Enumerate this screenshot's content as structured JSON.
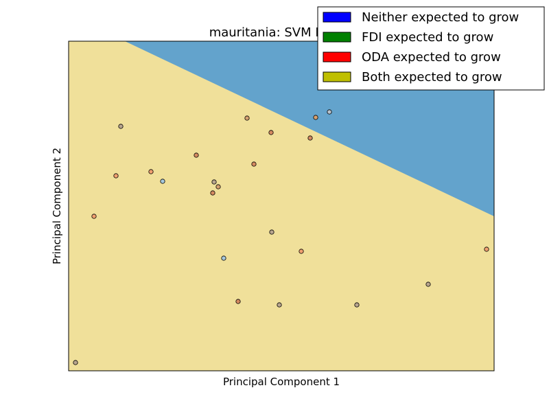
{
  "chart_data": {
    "type": "scatter",
    "title": "mauritania: SVM Linear",
    "xlabel": "Principal Component 1",
    "ylabel": "Principal Component 2",
    "xlim": [
      0,
      620
    ],
    "ylim": [
      0,
      480
    ],
    "ticks_visible": false,
    "grid": false,
    "legend_placement": "top-right",
    "legend": [
      {
        "label": "Neither expected to grow",
        "color": "#0000ff"
      },
      {
        "label": "FDI expected to grow",
        "color": "#008000"
      },
      {
        "label": "ODA expected to grow",
        "color": "#ff0000"
      },
      {
        "label": "Both expected to grow",
        "color": "#bfbf00"
      }
    ],
    "regions": [
      {
        "class": "Both expected to grow",
        "color": "#f0e09a"
      },
      {
        "class": "Neither expected to grow",
        "color": "#63a3cc"
      }
    ],
    "decision_boundary": [
      [
        82,
        480
      ],
      [
        620,
        225
      ]
    ],
    "points": [
      {
        "x": 76,
        "y": 356,
        "color": "#b8a58e"
      },
      {
        "x": 260,
        "y": 368,
        "color": "#d4a070"
      },
      {
        "x": 295,
        "y": 347,
        "color": "#d48a60"
      },
      {
        "x": 360,
        "y": 369,
        "color": "#d6a06f"
      },
      {
        "x": 380,
        "y": 377,
        "color": "#b8c2cc"
      },
      {
        "x": 352,
        "y": 339,
        "color": "#d48a60"
      },
      {
        "x": 186,
        "y": 314,
        "color": "#d48a60"
      },
      {
        "x": 270,
        "y": 301,
        "color": "#d48a60"
      },
      {
        "x": 120,
        "y": 290,
        "color": "#f0a070"
      },
      {
        "x": 69,
        "y": 284,
        "color": "#f0a070"
      },
      {
        "x": 137,
        "y": 276,
        "color": "#a6c8dc"
      },
      {
        "x": 212,
        "y": 275,
        "color": "#b8a58e"
      },
      {
        "x": 218,
        "y": 268,
        "color": "#d4a070"
      },
      {
        "x": 210,
        "y": 259,
        "color": "#d48a60"
      },
      {
        "x": 37,
        "y": 225,
        "color": "#f0a070"
      },
      {
        "x": 296,
        "y": 202,
        "color": "#b8a58e"
      },
      {
        "x": 339,
        "y": 174,
        "color": "#f0a070"
      },
      {
        "x": 609,
        "y": 177,
        "color": "#f0a070"
      },
      {
        "x": 226,
        "y": 164,
        "color": "#a6c8dc"
      },
      {
        "x": 524,
        "y": 126,
        "color": "#b8a58e"
      },
      {
        "x": 247,
        "y": 101,
        "color": "#d48a60"
      },
      {
        "x": 307,
        "y": 96,
        "color": "#b8a58e"
      },
      {
        "x": 420,
        "y": 96,
        "color": "#b8a58e"
      },
      {
        "x": 10,
        "y": 12,
        "color": "#b8a58e"
      }
    ]
  }
}
